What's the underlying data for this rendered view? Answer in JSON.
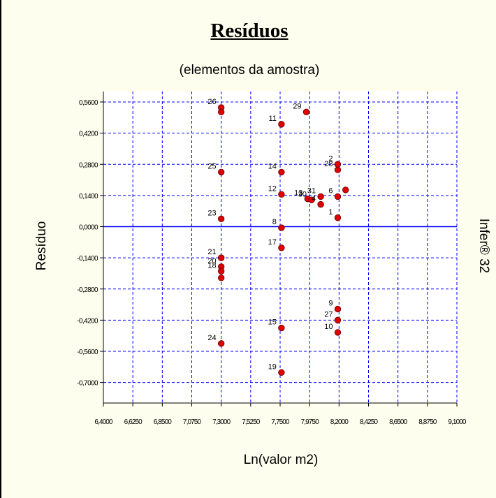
{
  "chart_data": {
    "type": "scatter",
    "title": "Resíduos",
    "subtitle": "(elementos da amostra)",
    "xlabel": "Ln(valor m2)",
    "ylabel": "Resíduo",
    "side_label": "Infer® 32",
    "xlim": [
      6.4,
      9.1
    ],
    "ylim": [
      -0.8,
      0.6
    ],
    "x_ticks": [
      "6,4000",
      "6,6250",
      "6,8500",
      "7,0750",
      "7,3000",
      "7,5250",
      "7,7500",
      "7,9750",
      "8,2000",
      "8,4250",
      "8,6500",
      "8,8750",
      "9,1000"
    ],
    "y_ticks": [
      "0,5600",
      "0,4200",
      "0,2800",
      "0,1400",
      "0,0000",
      "-0,1400",
      "-0,2800",
      "-0,4200",
      "-0,5600",
      "-0,7000"
    ],
    "grid": true,
    "points": [
      {
        "id": "26",
        "x": 7.3,
        "y": 0.535
      },
      {
        "id": "",
        "x": 7.3,
        "y": 0.515
      },
      {
        "id": "25",
        "x": 7.3,
        "y": 0.245
      },
      {
        "id": "23",
        "x": 7.3,
        "y": 0.035
      },
      {
        "id": "21",
        "x": 7.3,
        "y": -0.14
      },
      {
        "id": "20",
        "x": 7.3,
        "y": -0.18
      },
      {
        "id": "18",
        "x": 7.3,
        "y": -0.2
      },
      {
        "id": "",
        "x": 7.3,
        "y": -0.23
      },
      {
        "id": "24",
        "x": 7.3,
        "y": -0.525
      },
      {
        "id": "11",
        "x": 7.76,
        "y": 0.46
      },
      {
        "id": "14",
        "x": 7.76,
        "y": 0.245
      },
      {
        "id": "12",
        "x": 7.76,
        "y": 0.145
      },
      {
        "id": "8",
        "x": 7.76,
        "y": -0.005
      },
      {
        "id": "17",
        "x": 7.76,
        "y": -0.095
      },
      {
        "id": "15",
        "x": 7.76,
        "y": -0.455
      },
      {
        "id": "19",
        "x": 7.76,
        "y": -0.655
      },
      {
        "id": "29",
        "x": 7.95,
        "y": 0.515
      },
      {
        "id": "13",
        "x": 7.96,
        "y": 0.125
      },
      {
        "id": "30",
        "x": 7.99,
        "y": 0.12
      },
      {
        "id": "31",
        "x": 8.06,
        "y": 0.135
      },
      {
        "id": "4",
        "x": 8.06,
        "y": 0.1
      },
      {
        "id": "2",
        "x": 8.19,
        "y": 0.28
      },
      {
        "id": "28",
        "x": 8.19,
        "y": 0.255
      },
      {
        "id": "6",
        "x": 8.19,
        "y": 0.135
      },
      {
        "id": "",
        "x": 8.25,
        "y": 0.165
      },
      {
        "id": "1",
        "x": 8.19,
        "y": 0.04
      },
      {
        "id": "9",
        "x": 8.19,
        "y": -0.37
      },
      {
        "id": "27",
        "x": 8.19,
        "y": -0.42
      },
      {
        "id": "10",
        "x": 8.19,
        "y": -0.475
      }
    ]
  }
}
